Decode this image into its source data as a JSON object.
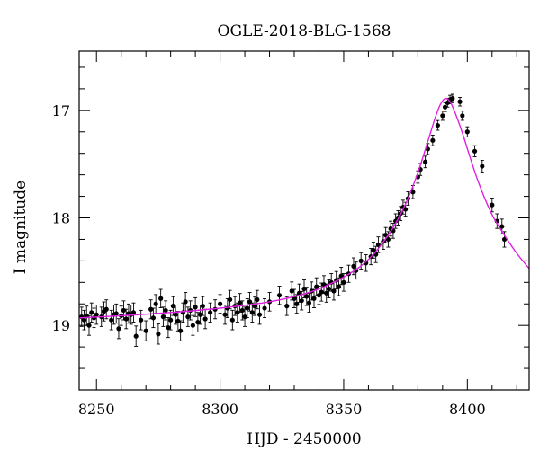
{
  "chart_data": {
    "type": "scatter",
    "title": "OGLE-2018-BLG-1568",
    "xlabel": "HJD - 2450000",
    "ylabel": "I magnitude",
    "xlim": [
      8243,
      8425
    ],
    "ylim": [
      19.6,
      16.45
    ],
    "y_inverted": true,
    "x_ticks": [
      8250,
      8300,
      8350,
      8400
    ],
    "y_ticks": [
      17,
      18,
      19
    ],
    "grid": false,
    "colors": {
      "data": "#000000",
      "model": "#e020e0"
    },
    "model": {
      "name": "",
      "x": [
        8243,
        8260,
        8280,
        8300,
        8320,
        8335,
        8345,
        8355,
        8362,
        8368,
        8372,
        8376,
        8380,
        8384,
        8387,
        8389,
        8391,
        8393,
        8395,
        8398,
        8401,
        8405,
        8410,
        8415,
        8420,
        8425
      ],
      "y": [
        18.93,
        18.91,
        18.88,
        18.84,
        18.78,
        18.7,
        18.61,
        18.48,
        18.34,
        18.16,
        18.01,
        17.82,
        17.58,
        17.29,
        17.07,
        16.95,
        16.89,
        16.92,
        17.02,
        17.21,
        17.43,
        17.7,
        17.97,
        18.16,
        18.33,
        18.47
      ]
    },
    "series": [
      {
        "name": "",
        "x": [
          8244,
          8245,
          8246,
          8247,
          8248,
          8249,
          8250,
          8252,
          8253,
          8254,
          8256,
          8257,
          8258,
          8259,
          8260,
          8261,
          8262,
          8263,
          8264,
          8265,
          8266,
          8268,
          8270,
          8272,
          8273,
          8274,
          8275,
          8276,
          8277,
          8278,
          8279,
          8280,
          8281,
          8282,
          8283,
          8284,
          8285,
          8286,
          8287,
          8288,
          8289,
          8290,
          8291,
          8292,
          8293,
          8294,
          8296,
          8298,
          8300,
          8302,
          8303,
          8304,
          8305,
          8306,
          8307,
          8308,
          8309,
          8310,
          8311,
          8312,
          8313,
          8314,
          8315,
          8316,
          8318,
          8320,
          8324,
          8327,
          8329,
          8330,
          8331,
          8332,
          8333,
          8334,
          8335,
          8336,
          8337,
          8338,
          8339,
          8340,
          8341,
          8342,
          8343,
          8344,
          8345,
          8346,
          8347,
          8348,
          8349,
          8350,
          8352,
          8354,
          8355,
          8357,
          8359,
          8361,
          8362,
          8363,
          8364,
          8366,
          8367,
          8368,
          8369,
          8370,
          8371,
          8372,
          8373,
          8374,
          8375,
          8376,
          8378,
          8380,
          8381,
          8383,
          8384,
          8386,
          8388,
          8390,
          8391,
          8392,
          8393,
          8394,
          8397,
          8398,
          8400,
          8403,
          8406,
          8410,
          8412,
          8414,
          8415
        ],
        "y": [
          18.92,
          18.95,
          18.91,
          19.0,
          18.88,
          18.93,
          18.9,
          18.92,
          18.87,
          18.85,
          18.95,
          18.9,
          18.89,
          19.03,
          18.91,
          18.86,
          18.94,
          18.89,
          18.9,
          18.88,
          19.1,
          18.95,
          19.05,
          18.85,
          18.93,
          18.8,
          19.08,
          18.75,
          18.92,
          18.86,
          19.02,
          18.95,
          18.82,
          18.9,
          18.96,
          19.05,
          18.88,
          18.78,
          18.92,
          18.86,
          19.0,
          18.83,
          18.97,
          18.9,
          18.82,
          18.94,
          18.88,
          18.85,
          18.8,
          18.9,
          18.84,
          18.76,
          18.95,
          18.82,
          18.88,
          18.79,
          18.86,
          18.92,
          18.84,
          18.78,
          18.88,
          18.82,
          18.76,
          18.9,
          18.84,
          18.78,
          18.72,
          18.82,
          18.68,
          18.75,
          18.8,
          18.7,
          18.77,
          18.66,
          18.73,
          18.79,
          18.68,
          18.75,
          18.64,
          18.72,
          18.69,
          18.62,
          18.7,
          18.66,
          18.6,
          18.68,
          18.58,
          18.64,
          18.54,
          18.6,
          18.52,
          18.45,
          18.49,
          18.4,
          18.42,
          18.36,
          18.3,
          18.34,
          18.25,
          18.22,
          18.16,
          18.2,
          18.1,
          18.12,
          18.03,
          18.0,
          17.96,
          17.9,
          17.92,
          17.82,
          17.76,
          17.62,
          17.55,
          17.48,
          17.36,
          17.28,
          17.14,
          17.05,
          16.97,
          16.93,
          16.9,
          16.89,
          16.92,
          17.05,
          17.2,
          17.38,
          17.52,
          17.88,
          18.03,
          18.08,
          18.2
        ]
      }
    ]
  }
}
